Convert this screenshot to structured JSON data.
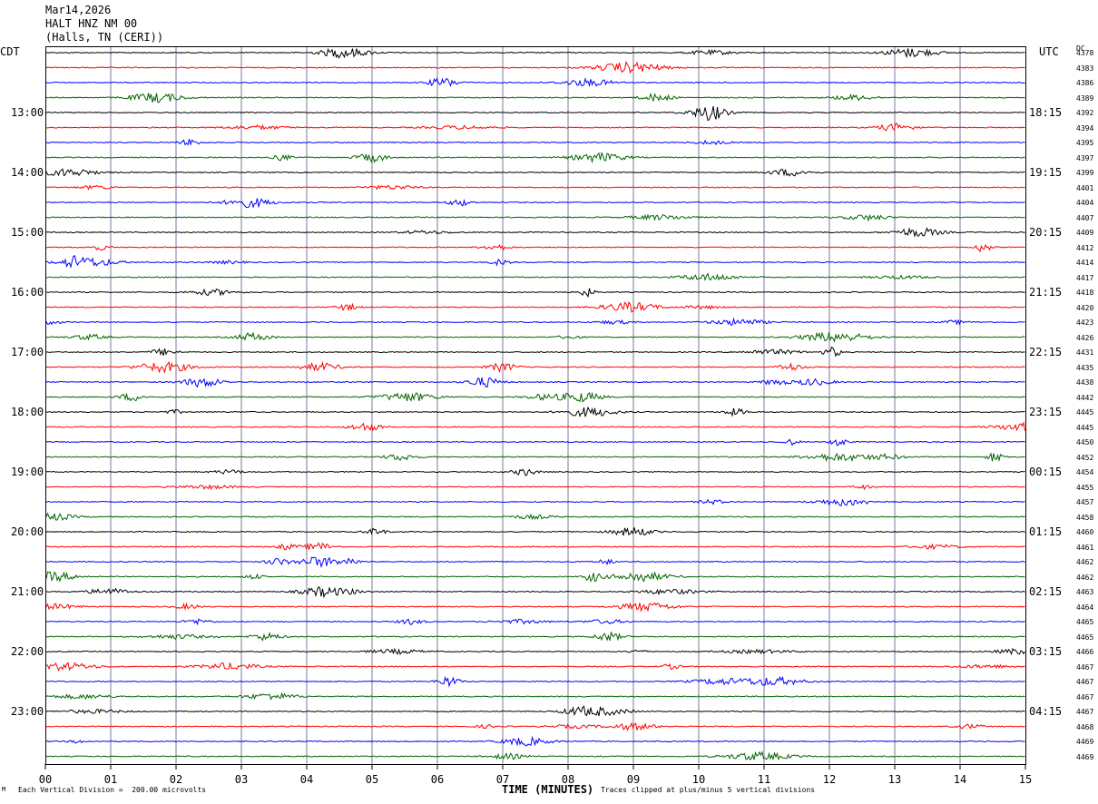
{
  "header": {
    "date": "Mar14,2026",
    "station": "HALT HNZ NM 00",
    "location": "(Halls, TN (CERI))"
  },
  "left_zone": "CDT",
  "right_zone": "UTC",
  "dc_header": "DC",
  "footer": {
    "scale": "Each Vertical Division =  200.00 microvolts",
    "clip": "Traces clipped at plus/minus 5 vertical divisions",
    "mark": "M"
  },
  "chart_data": {
    "type": "line",
    "title": "",
    "xlabel": "TIME (MINUTES)",
    "ylabel": "",
    "xlim": [
      0,
      15
    ],
    "x_ticks": [
      "00",
      "01",
      "02",
      "03",
      "04",
      "05",
      "06",
      "07",
      "08",
      "09",
      "10",
      "11",
      "12",
      "13",
      "14",
      "15"
    ],
    "trace_colors": [
      "#000000",
      "#ff0000",
      "#0000ff",
      "#006400"
    ],
    "trace_count": 48,
    "left_hour_labels": [
      "13:00",
      "14:00",
      "15:00",
      "16:00",
      "17:00",
      "18:00",
      "19:00",
      "20:00",
      "21:00",
      "22:00",
      "23:00"
    ],
    "right_hour_labels": [
      "18:15",
      "19:15",
      "20:15",
      "21:15",
      "22:15",
      "23:15",
      "00:15",
      "01:15",
      "02:15",
      "03:15",
      "04:15"
    ],
    "dc_offsets": [
      "4378",
      "4383",
      "4386",
      "4389",
      "4392",
      "4394",
      "4395",
      "4397",
      "4399",
      "4401",
      "4404",
      "4407",
      "4409",
      "4412",
      "4414",
      "4417",
      "4418",
      "4420",
      "4423",
      "4426",
      "4431",
      "4435",
      "4438",
      "4442",
      "4445",
      "4445",
      "4450",
      "4452",
      "4454",
      "4455",
      "4457",
      "4458",
      "4460",
      "4461",
      "4462",
      "4462",
      "4463",
      "4464",
      "4465",
      "4465",
      "4466",
      "4467",
      "4467",
      "4467",
      "4467",
      "4468",
      "4469",
      "4469"
    ]
  }
}
